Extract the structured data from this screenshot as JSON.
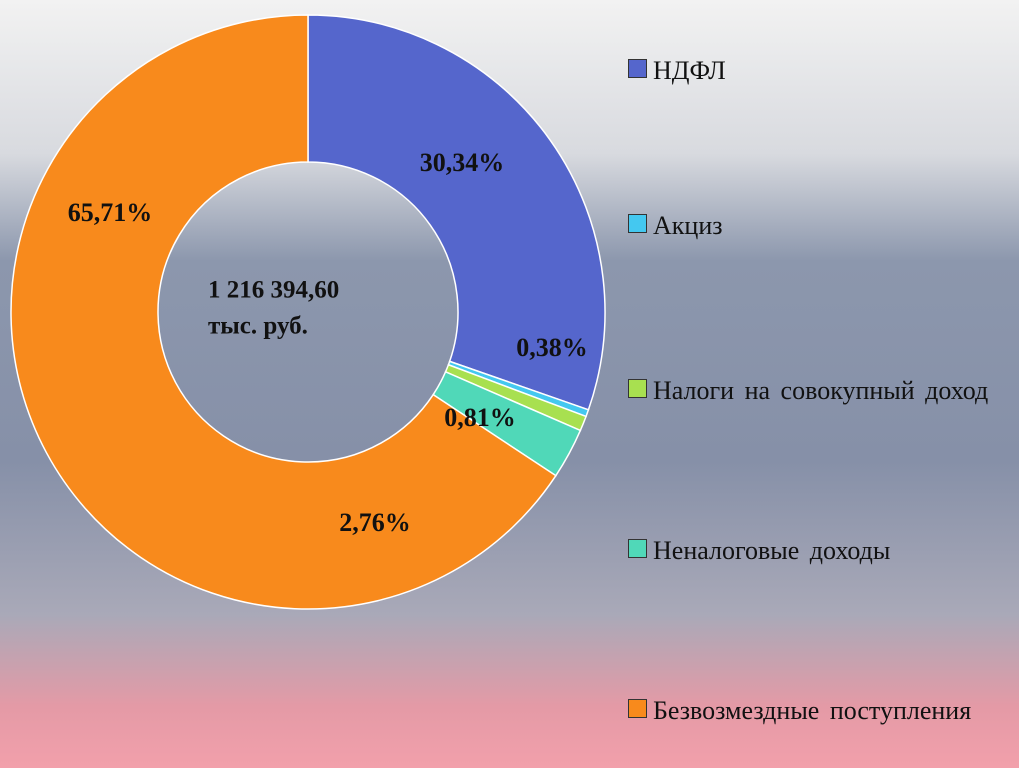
{
  "chart_data": {
    "type": "donut",
    "center_label": [
      "1 216 394,60",
      "тыс. руб."
    ],
    "categories": [
      "НДФЛ",
      "Акциз",
      "Налоги на совокупный доход",
      "Неналоговые доходы",
      "Безвозмездные поступления"
    ],
    "values": [
      30.34,
      0.38,
      0.81,
      2.76,
      65.71
    ],
    "value_labels": [
      "30,34%",
      "0,38%",
      "0,81%",
      "2,76%",
      "65,71%"
    ],
    "colors": [
      "#5566cc",
      "#44c8f0",
      "#a8e050",
      "#50d8b8",
      "#f88a1c"
    ],
    "legend": "right"
  }
}
